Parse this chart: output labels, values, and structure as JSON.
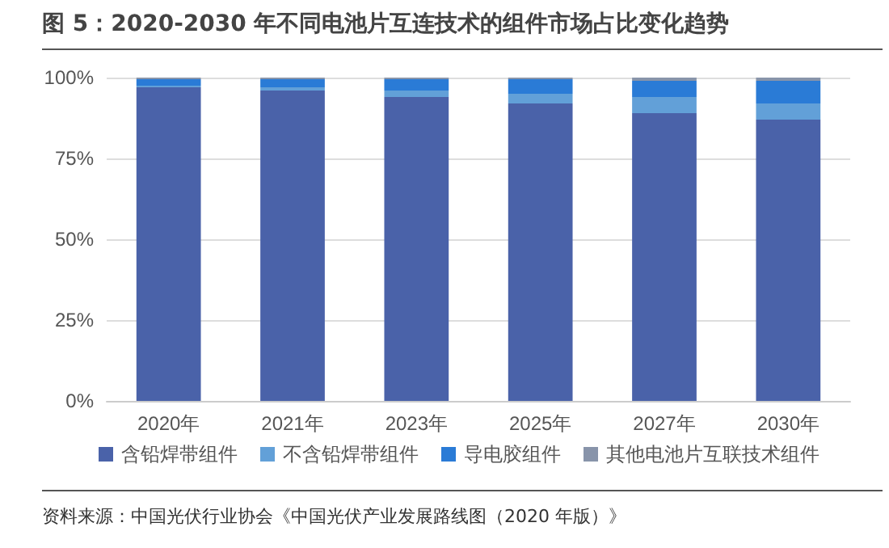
{
  "chart_data": {
    "type": "bar",
    "title": "图 5：2020-2030 年不同电池片互连技术的组件市场占比变化趋势",
    "categories": [
      "2020年",
      "2021年",
      "2023年",
      "2025年",
      "2027年",
      "2030年"
    ],
    "stacked": true,
    "series": [
      {
        "name": "含铅焊带组件",
        "color": "#4a62a9",
        "values": [
          97,
          96,
          94,
          92,
          89,
          87
        ]
      },
      {
        "name": "不含铅焊带组件",
        "color": "#62a0d8",
        "values": [
          0.5,
          1,
          2,
          3,
          5,
          5
        ]
      },
      {
        "name": "导电胶组件",
        "color": "#2a7bd6",
        "values": [
          2,
          2.5,
          3.5,
          4.5,
          5,
          7
        ]
      },
      {
        "name": "其他电池片互联技术组件",
        "color": "#8894aa",
        "values": [
          0.5,
          0.5,
          0.5,
          0.5,
          1,
          1
        ]
      }
    ],
    "ylim": [
      0,
      100
    ],
    "yticks": [
      {
        "value": 0,
        "label": "0%"
      },
      {
        "value": 25,
        "label": "25%"
      },
      {
        "value": 50,
        "label": "50%"
      },
      {
        "value": 75,
        "label": "75%"
      },
      {
        "value": 100,
        "label": "100%"
      }
    ],
    "grid": "y",
    "legend": "bottom",
    "annotations": [
      "资料来源：中国光伏行业协会《中国光伏产业发展路线图（2020 年版）》"
    ]
  }
}
